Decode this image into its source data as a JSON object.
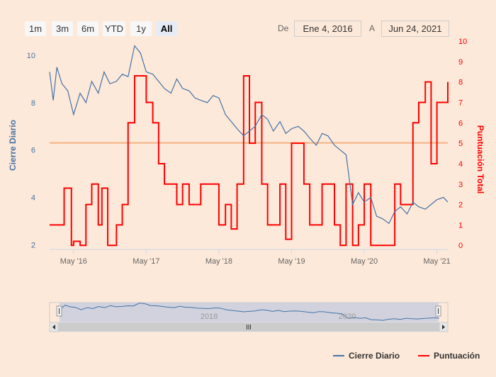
{
  "range_selector": {
    "buttons": [
      {
        "label": "1m",
        "active": false
      },
      {
        "label": "3m",
        "active": false
      },
      {
        "label": "6m",
        "active": false
      },
      {
        "label": "YTD",
        "active": false
      },
      {
        "label": "1y",
        "active": false
      },
      {
        "label": "All",
        "active": true
      }
    ],
    "from_label": "De",
    "from_value": "Ene 4, 2016",
    "to_label": "A",
    "to_value": "Jun 24, 2021"
  },
  "colors": {
    "price": "#4572a7",
    "score": "#ff0000",
    "plotline": "#f4b183"
  },
  "navigator": {
    "labels": [
      "2018",
      "2020"
    ]
  },
  "chart_data": {
    "type": "line",
    "x_axis": {
      "ticks": [
        "May '16",
        "May '17",
        "May '18",
        "May '19",
        "May '20",
        "May '21"
      ],
      "range": [
        "2016-01-04",
        "2021-06-24"
      ]
    },
    "y_left": {
      "title": "Cierre Diario",
      "ticks": [
        2,
        4,
        6,
        8,
        10
      ],
      "range": [
        1.8,
        10.6
      ]
    },
    "y_right": {
      "title": "Puntuación Total",
      "ticks": [
        0,
        1,
        2,
        3,
        4,
        5,
        6,
        7,
        8,
        9,
        10
      ],
      "range": [
        -0.2,
        10
      ]
    },
    "plot_line": {
      "axis": "left",
      "value": 6.3
    },
    "series": [
      {
        "name": "Cierre Diario",
        "axis": "left",
        "x": [
          2016.0,
          2016.05,
          2016.1,
          2016.17,
          2016.25,
          2016.33,
          2016.42,
          2016.5,
          2016.58,
          2016.67,
          2016.75,
          2016.83,
          2016.92,
          2017.0,
          2017.08,
          2017.17,
          2017.25,
          2017.33,
          2017.42,
          2017.5,
          2017.58,
          2017.67,
          2017.75,
          2017.83,
          2017.92,
          2018.0,
          2018.08,
          2018.17,
          2018.25,
          2018.33,
          2018.42,
          2018.5,
          2018.58,
          2018.67,
          2018.75,
          2018.83,
          2018.92,
          2019.0,
          2019.08,
          2019.17,
          2019.25,
          2019.33,
          2019.42,
          2019.5,
          2019.58,
          2019.67,
          2019.75,
          2019.83,
          2019.92,
          2020.0,
          2020.08,
          2020.17,
          2020.25,
          2020.33,
          2020.42,
          2020.5,
          2020.58,
          2020.67,
          2020.75,
          2020.83,
          2020.92,
          2021.0,
          2021.08,
          2021.17,
          2021.25,
          2021.33,
          2021.42,
          2021.48
        ],
        "values": [
          9.3,
          8.1,
          9.5,
          8.8,
          8.5,
          7.5,
          8.4,
          8.0,
          8.9,
          8.4,
          9.3,
          8.8,
          8.9,
          9.2,
          9.1,
          10.4,
          10.1,
          9.3,
          9.2,
          8.9,
          8.6,
          8.4,
          9.0,
          8.6,
          8.5,
          8.2,
          8.1,
          8.0,
          8.3,
          8.2,
          7.5,
          7.2,
          6.9,
          6.6,
          6.8,
          7.0,
          7.5,
          7.3,
          6.8,
          7.2,
          6.7,
          6.9,
          7.0,
          6.8,
          6.5,
          6.2,
          6.7,
          6.6,
          6.2,
          6.0,
          5.8,
          3.7,
          4.2,
          3.8,
          4.0,
          3.2,
          3.1,
          2.9,
          3.4,
          3.6,
          3.3,
          3.8,
          3.6,
          3.5,
          3.7,
          3.9,
          4.0,
          3.8
        ]
      },
      {
        "name": "Puntuación",
        "axis": "right",
        "x": [
          2016.0,
          2016.18,
          2016.2,
          2016.3,
          2016.33,
          2016.42,
          2016.5,
          2016.58,
          2016.67,
          2016.72,
          2016.8,
          2016.92,
          2017.0,
          2017.08,
          2017.17,
          2017.25,
          2017.33,
          2017.42,
          2017.5,
          2017.58,
          2017.75,
          2017.83,
          2017.92,
          2018.0,
          2018.08,
          2018.25,
          2018.33,
          2018.42,
          2018.5,
          2018.58,
          2018.67,
          2018.75,
          2018.83,
          2018.92,
          2019.0,
          2019.08,
          2019.17,
          2019.25,
          2019.33,
          2019.42,
          2019.5,
          2019.58,
          2019.67,
          2019.75,
          2019.83,
          2019.92,
          2020.0,
          2020.08,
          2020.17,
          2020.25,
          2020.33,
          2020.42,
          2020.5,
          2020.58,
          2020.67,
          2020.75,
          2020.83,
          2020.92,
          2021.0,
          2021.08,
          2021.17,
          2021.25,
          2021.33,
          2021.42,
          2021.48
        ],
        "values": [
          1.0,
          1.0,
          2.8,
          0,
          0.2,
          0,
          2.0,
          3.0,
          1.0,
          2.8,
          0,
          1.0,
          2.0,
          6.0,
          8.3,
          8.3,
          7.0,
          6.0,
          4.0,
          3.0,
          2.0,
          3.0,
          2.0,
          2.0,
          3.0,
          3.0,
          1.0,
          2.0,
          0.8,
          3.0,
          8.3,
          5.0,
          7.0,
          3.0,
          1.0,
          1.0,
          3.0,
          0.3,
          5.0,
          5.0,
          3.0,
          1.0,
          1.0,
          3.0,
          3.0,
          1.0,
          0,
          3.0,
          0,
          1.0,
          3.0,
          0,
          0,
          0,
          0,
          3.0,
          2.0,
          2.0,
          6.0,
          7.0,
          8.0,
          4.0,
          7.0,
          7.0,
          8.0
        ]
      }
    ],
    "legend": [
      {
        "name": "Cierre Diario"
      },
      {
        "name": "Puntuación"
      }
    ]
  }
}
